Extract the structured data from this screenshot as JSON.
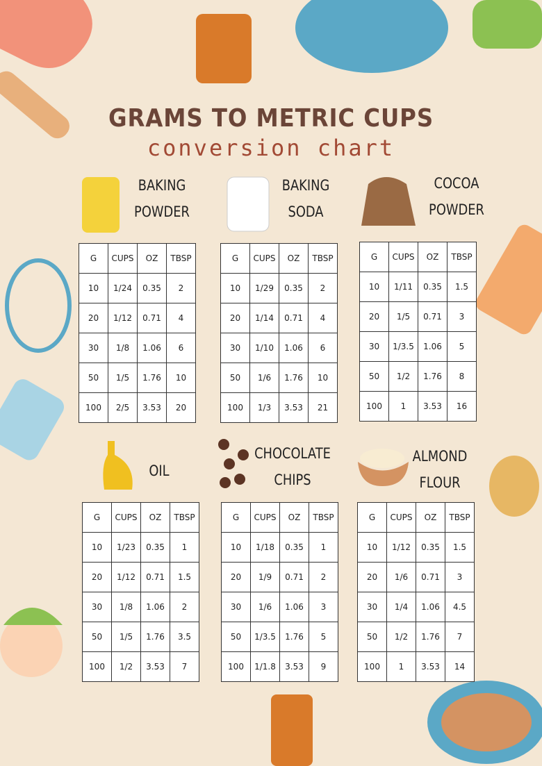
{
  "header": {
    "title": "GRAMS TO METRIC CUPS",
    "subtitle": "conversion chart"
  },
  "sections": [
    {
      "label": [
        "BAKING",
        "POWDER"
      ],
      "header": [
        "G",
        "CUPS",
        "OZ",
        "TBSP"
      ],
      "rows": [
        [
          "10",
          "1/24",
          "0.35",
          "2"
        ],
        [
          "20",
          "1/12",
          "0.71",
          "4"
        ],
        [
          "30",
          "1/8",
          "1.06",
          "6"
        ],
        [
          "50",
          "1/5",
          "1.76",
          "10"
        ],
        [
          "100",
          "2/5",
          "3.53",
          "20"
        ]
      ]
    },
    {
      "label": [
        "BAKING",
        "SODA"
      ],
      "header": [
        "G",
        "CUPS",
        "OZ",
        "TBSP"
      ],
      "rows": [
        [
          "10",
          "1/29",
          "0.35",
          "2"
        ],
        [
          "20",
          "1/14",
          "0.71",
          "4"
        ],
        [
          "30",
          "1/10",
          "1.06",
          "6"
        ],
        [
          "50",
          "1/6",
          "1.76",
          "10"
        ],
        [
          "100",
          "1/3",
          "3.53",
          "21"
        ]
      ]
    },
    {
      "label": [
        "COCOA",
        "POWDER"
      ],
      "header": [
        "G",
        "CUPS",
        "OZ",
        "TBSP"
      ],
      "rows": [
        [
          "10",
          "1/11",
          "0.35",
          "1.5"
        ],
        [
          "20",
          "1/5",
          "0.71",
          "3"
        ],
        [
          "30",
          "1/3.5",
          "1.06",
          "5"
        ],
        [
          "50",
          "1/2",
          "1.76",
          "8"
        ],
        [
          "100",
          "1",
          "3.53",
          "16"
        ]
      ]
    },
    {
      "label": [
        "OIL"
      ],
      "header": [
        "G",
        "CUPS",
        "OZ",
        "TBSP"
      ],
      "rows": [
        [
          "10",
          "1/23",
          "0.35",
          "1"
        ],
        [
          "20",
          "1/12",
          "0.71",
          "1.5"
        ],
        [
          "30",
          "1/8",
          "1.06",
          "2"
        ],
        [
          "50",
          "1/5",
          "1.76",
          "3.5"
        ],
        [
          "100",
          "1/2",
          "3.53",
          "7"
        ]
      ]
    },
    {
      "label": [
        "CHOCOLATE",
        "CHIPS"
      ],
      "header": [
        "G",
        "CUPS",
        "OZ",
        "TBSP"
      ],
      "rows": [
        [
          "10",
          "1/18",
          "0.35",
          "1"
        ],
        [
          "20",
          "1/9",
          "0.71",
          "2"
        ],
        [
          "30",
          "1/6",
          "1.06",
          "3"
        ],
        [
          "50",
          "1/3.5",
          "1.76",
          "5"
        ],
        [
          "100",
          "1/1.8",
          "3.53",
          "9"
        ]
      ]
    },
    {
      "label": [
        "ALMOND",
        "FLOUR"
      ],
      "header": [
        "G",
        "CUPS",
        "OZ",
        "TBSP"
      ],
      "rows": [
        [
          "10",
          "1/12",
          "0.35",
          "1.5"
        ],
        [
          "20",
          "1/6",
          "0.71",
          "3"
        ],
        [
          "30",
          "1/4",
          "1.06",
          "4.5"
        ],
        [
          "50",
          "1/2",
          "1.76",
          "7"
        ],
        [
          "100",
          "1",
          "3.53",
          "14"
        ]
      ]
    }
  ]
}
